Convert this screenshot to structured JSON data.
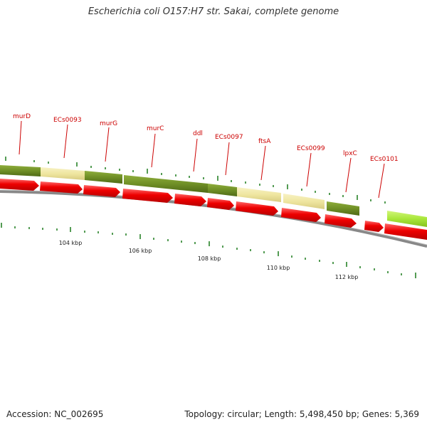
{
  "title": "Escherichia coli O157:H7 str. Sakai, complete genome",
  "footer": {
    "accession": "Accession: NC_002695",
    "summary": "Topology: circular; Length: 5,498,450 bp; Genes: 5,369"
  },
  "colors": {
    "gene_arrow": "#ee0000",
    "feature_dark": "#6f8f26",
    "feature_light": "#efe6a0",
    "feature_bright": "#a8e63a",
    "backbone": "#888888",
    "tick": "#1a7a1a",
    "label": "#cc0000"
  },
  "gene_labels": [
    "murD",
    "ECs0093",
    "murG",
    "murC",
    "ddl",
    "ECs0097",
    "ftsA",
    "ECs0099",
    "lpxC",
    "ECs0101"
  ],
  "scale_labels": [
    "104 kbp",
    "106 kbp",
    "108 kbp",
    "110 kbp",
    "112 kbp"
  ]
}
